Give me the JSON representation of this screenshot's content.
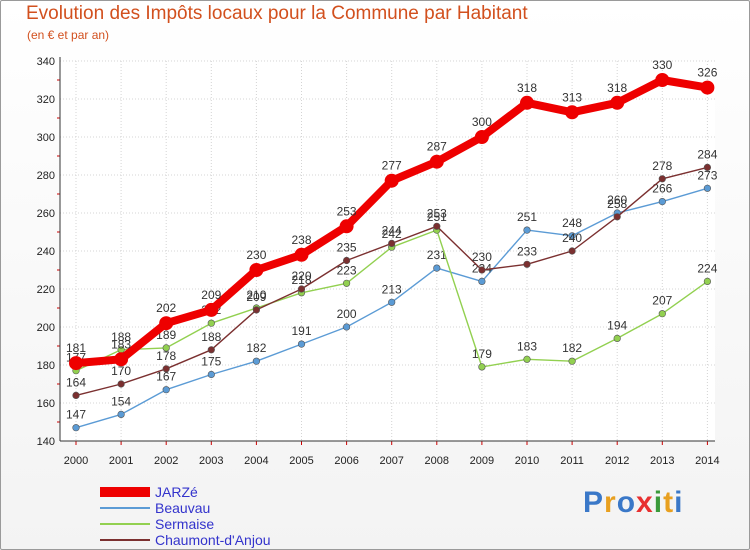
{
  "chart_data": {
    "type": "line",
    "title": "Evolution des Impôts locaux pour la Commune par Habitant",
    "subtitle": "(en € et par an)",
    "xlabel": "",
    "ylabel": "",
    "x": [
      "2000",
      "2001",
      "2002",
      "2003",
      "2004",
      "2005",
      "2006",
      "2007",
      "2008",
      "2009",
      "2010",
      "2011",
      "2012",
      "2013",
      "2014"
    ],
    "ylim": [
      140,
      340
    ],
    "yticks": [
      "140",
      "160",
      "180",
      "200",
      "220",
      "240",
      "260",
      "280",
      "300",
      "320",
      "340"
    ],
    "grid": true,
    "series": [
      {
        "name": "Beauvau",
        "color": "#5b9bd5",
        "values": [
          147,
          154,
          167,
          175,
          182,
          191,
          200,
          213,
          231,
          224,
          251,
          248,
          260,
          266,
          273
        ]
      },
      {
        "name": "Sermaise",
        "color": "#92d050",
        "values": [
          177,
          188,
          189,
          202,
          210,
          218,
          223,
          242,
          251,
          179,
          183,
          182,
          194,
          207,
          224
        ]
      },
      {
        "name": "Chaumont-d'Anjou",
        "color": "#7b3030",
        "values": [
          164,
          170,
          178,
          188,
          209,
          220,
          235,
          244,
          253,
          230,
          233,
          240,
          258,
          278,
          284
        ]
      },
      {
        "name": "JARZé",
        "color": "#ee0000",
        "values": [
          181,
          183,
          202,
          209,
          230,
          238,
          253,
          277,
          287,
          300,
          318,
          313,
          318,
          330,
          326
        ]
      }
    ]
  },
  "legend": {
    "items": [
      {
        "label": "JARZé",
        "color": "#ee0000"
      },
      {
        "label": "Beauvau",
        "color": "#5b9bd5"
      },
      {
        "label": "Sermaise",
        "color": "#92d050"
      },
      {
        "label": "Chaumont-d'Anjou",
        "color": "#7b3030"
      }
    ]
  },
  "brand": {
    "letters": [
      "P",
      "r",
      "o",
      "x",
      "i",
      "t",
      "i"
    ],
    "colors": [
      "#3a78c8",
      "#e8a020",
      "#3a78c8",
      "#e83030",
      "#3a9a3a",
      "#e8a020",
      "#3a78c8"
    ]
  }
}
